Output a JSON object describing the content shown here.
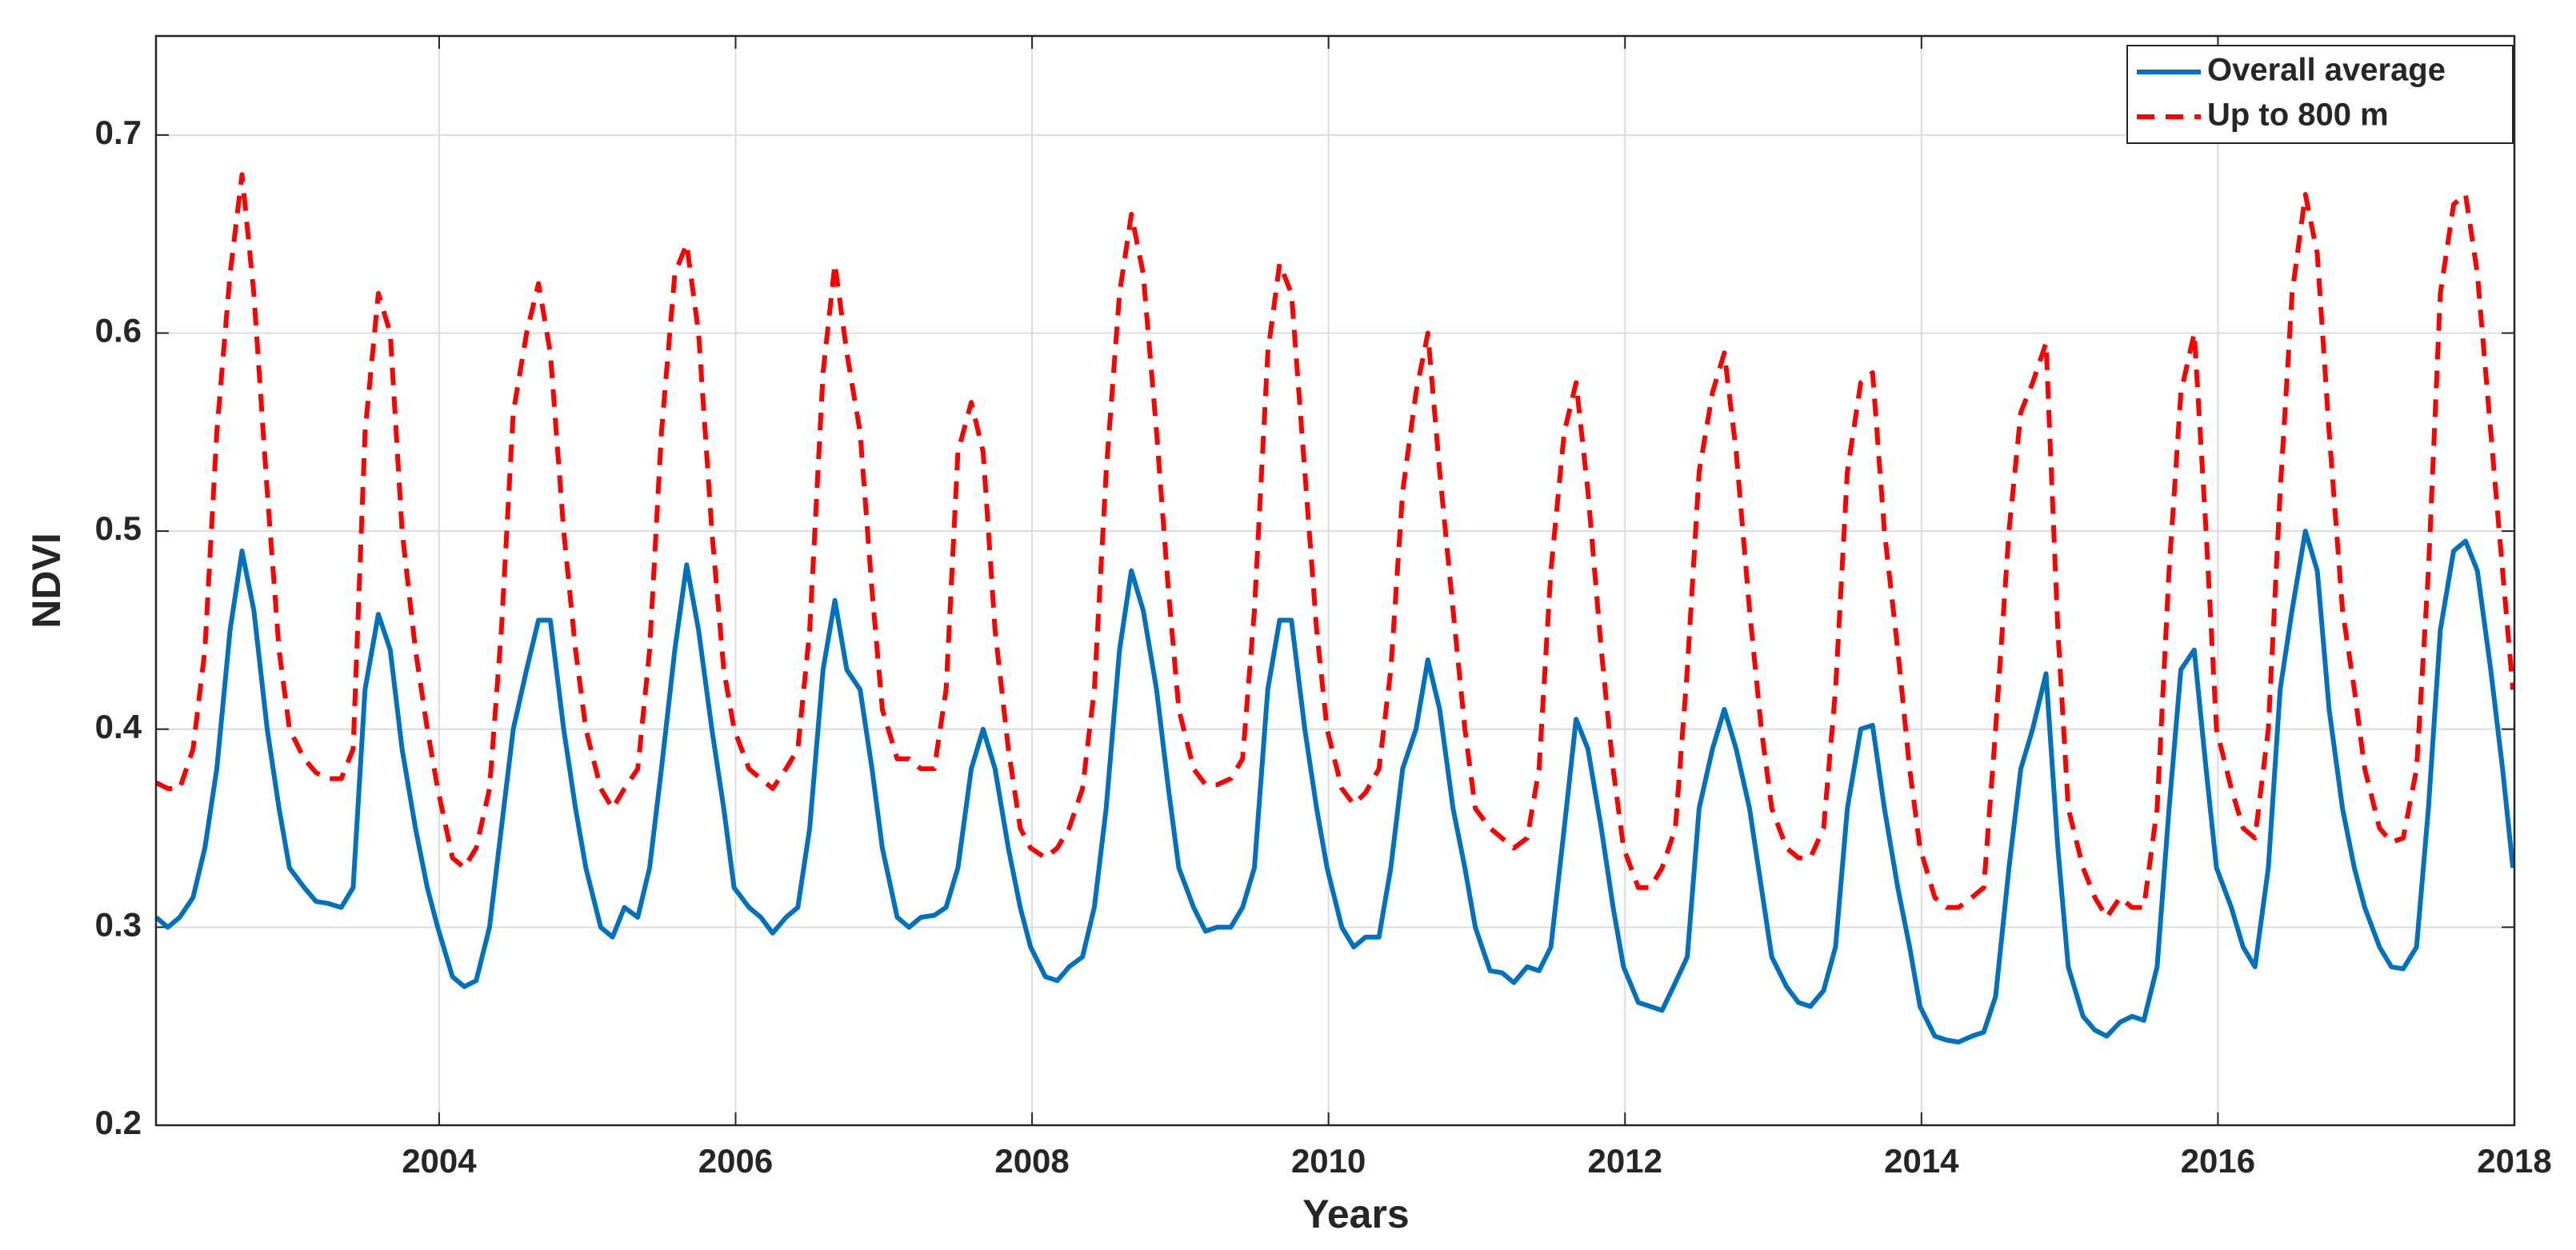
{
  "chart_data": {
    "type": "line",
    "xlabel": "Years",
    "ylabel": "NDVI",
    "xlim": [
      2002.09,
      2018
    ],
    "ylim": [
      0.2,
      0.75
    ],
    "xticks": [
      2004,
      2006,
      2008,
      2010,
      2012,
      2014,
      2016,
      2018
    ],
    "yticks": [
      0.2,
      0.3,
      0.4,
      0.5,
      0.6,
      0.7
    ],
    "grid": true,
    "legend": "upper right",
    "x": [
      2002.09,
      2002.17,
      2002.25,
      2002.34,
      2002.42,
      2002.5,
      2002.59,
      2002.67,
      2002.75,
      2002.84,
      2002.92,
      2002.99,
      2003.09,
      2003.17,
      2003.25,
      2003.34,
      2003.42,
      2003.5,
      2003.59,
      2003.67,
      2003.75,
      2003.84,
      2003.92,
      2003.99,
      2004.09,
      2004.17,
      2004.25,
      2004.34,
      2004.42,
      2004.5,
      2004.59,
      2004.67,
      2004.75,
      2004.84,
      2004.92,
      2004.99,
      2005.09,
      2005.17,
      2005.25,
      2005.34,
      2005.42,
      2005.5,
      2005.59,
      2005.67,
      2005.75,
      2005.84,
      2005.92,
      2005.99,
      2006.09,
      2006.17,
      2006.25,
      2006.34,
      2006.42,
      2006.5,
      2006.59,
      2006.67,
      2006.75,
      2006.84,
      2006.92,
      2006.99,
      2007.09,
      2007.17,
      2007.25,
      2007.34,
      2007.42,
      2007.5,
      2007.59,
      2007.67,
      2007.75,
      2007.84,
      2007.92,
      2007.99,
      2008.09,
      2008.17,
      2008.25,
      2008.34,
      2008.42,
      2008.5,
      2008.59,
      2008.67,
      2008.75,
      2008.84,
      2008.92,
      2008.99,
      2009.09,
      2009.17,
      2009.25,
      2009.34,
      2009.42,
      2009.5,
      2009.59,
      2009.67,
      2009.75,
      2009.84,
      2009.92,
      2009.99,
      2010.09,
      2010.17,
      2010.25,
      2010.34,
      2010.42,
      2010.5,
      2010.59,
      2010.67,
      2010.75,
      2010.84,
      2010.92,
      2010.99,
      2011.09,
      2011.17,
      2011.25,
      2011.34,
      2011.42,
      2011.5,
      2011.59,
      2011.67,
      2011.75,
      2011.84,
      2011.92,
      2011.99,
      2012.09,
      2012.17,
      2012.25,
      2012.34,
      2012.42,
      2012.5,
      2012.59,
      2012.67,
      2012.75,
      2012.84,
      2012.92,
      2012.99,
      2013.09,
      2013.17,
      2013.25,
      2013.34,
      2013.42,
      2013.5,
      2013.59,
      2013.67,
      2013.75,
      2013.84,
      2013.92,
      2013.99,
      2014.09,
      2014.17,
      2014.25,
      2014.34,
      2014.42,
      2014.5,
      2014.59,
      2014.67,
      2014.75,
      2014.84,
      2014.92,
      2014.99,
      2015.09,
      2015.17,
      2015.25,
      2015.34,
      2015.42,
      2015.5,
      2015.59,
      2015.67,
      2015.75,
      2015.84,
      2015.92,
      2015.99,
      2016.09,
      2016.17,
      2016.25,
      2016.34,
      2016.42,
      2016.5,
      2016.59,
      2016.67,
      2016.75,
      2016.84,
      2016.92,
      2016.99,
      2017.09,
      2017.17,
      2017.25,
      2017.34,
      2017.42,
      2017.5,
      2017.59,
      2017.67,
      2017.75,
      2017.84,
      2017.92,
      2017.99
    ],
    "series": [
      {
        "name": "Overall average",
        "color": "#0072bd",
        "values": [
          0.305,
          0.3,
          0.305,
          0.315,
          0.34,
          0.38,
          0.45,
          0.49,
          0.46,
          0.4,
          0.36,
          0.33,
          0.32,
          0.313,
          0.312,
          0.31,
          0.32,
          0.42,
          0.458,
          0.44,
          0.39,
          0.35,
          0.32,
          0.3,
          0.275,
          0.27,
          0.273,
          0.3,
          0.35,
          0.4,
          0.43,
          0.455,
          0.455,
          0.4,
          0.36,
          0.33,
          0.3,
          0.295,
          0.31,
          0.305,
          0.33,
          0.38,
          0.44,
          0.483,
          0.45,
          0.4,
          0.36,
          0.32,
          0.31,
          0.305,
          0.297,
          0.305,
          0.31,
          0.35,
          0.43,
          0.465,
          0.43,
          0.42,
          0.38,
          0.34,
          0.305,
          0.3,
          0.305,
          0.306,
          0.31,
          0.33,
          0.38,
          0.4,
          0.38,
          0.34,
          0.31,
          0.29,
          0.275,
          0.273,
          0.28,
          0.285,
          0.31,
          0.36,
          0.44,
          0.48,
          0.46,
          0.42,
          0.37,
          0.33,
          0.31,
          0.298,
          0.3,
          0.3,
          0.31,
          0.33,
          0.42,
          0.455,
          0.455,
          0.4,
          0.36,
          0.33,
          0.3,
          0.29,
          0.295,
          0.295,
          0.33,
          0.38,
          0.4,
          0.435,
          0.41,
          0.36,
          0.33,
          0.3,
          0.278,
          0.277,
          0.272,
          0.28,
          0.278,
          0.29,
          0.35,
          0.405,
          0.39,
          0.35,
          0.31,
          0.28,
          0.262,
          0.26,
          0.258,
          0.272,
          0.285,
          0.36,
          0.39,
          0.41,
          0.39,
          0.36,
          0.32,
          0.285,
          0.27,
          0.262,
          0.26,
          0.268,
          0.29,
          0.36,
          0.4,
          0.402,
          0.36,
          0.32,
          0.29,
          0.26,
          0.245,
          0.243,
          0.242,
          0.245,
          0.247,
          0.265,
          0.33,
          0.38,
          0.4,
          0.428,
          0.34,
          0.28,
          0.255,
          0.248,
          0.245,
          0.252,
          0.255,
          0.253,
          0.28,
          0.36,
          0.43,
          0.44,
          0.38,
          0.33,
          0.31,
          0.29,
          0.28,
          0.33,
          0.42,
          0.46,
          0.5,
          0.48,
          0.41,
          0.36,
          0.33,
          0.31,
          0.29,
          0.28,
          0.279,
          0.29,
          0.36,
          0.45,
          0.49,
          0.495,
          0.48,
          0.43,
          0.38,
          0.33
        ]
      },
      {
        "name": "Up to 800 m",
        "color": "#ff0000",
        "dashed": true,
        "values": [
          0.373,
          0.37,
          0.37,
          0.39,
          0.44,
          0.55,
          0.63,
          0.68,
          0.62,
          0.52,
          0.44,
          0.4,
          0.385,
          0.378,
          0.375,
          0.375,
          0.39,
          0.55,
          0.62,
          0.6,
          0.5,
          0.44,
          0.4,
          0.37,
          0.335,
          0.33,
          0.34,
          0.37,
          0.45,
          0.56,
          0.6,
          0.625,
          0.59,
          0.5,
          0.44,
          0.4,
          0.37,
          0.36,
          0.37,
          0.38,
          0.44,
          0.55,
          0.63,
          0.645,
          0.6,
          0.5,
          0.43,
          0.4,
          0.38,
          0.375,
          0.37,
          0.38,
          0.39,
          0.45,
          0.58,
          0.635,
          0.59,
          0.55,
          0.47,
          0.41,
          0.385,
          0.385,
          0.38,
          0.38,
          0.42,
          0.54,
          0.565,
          0.54,
          0.45,
          0.39,
          0.35,
          0.34,
          0.335,
          0.34,
          0.35,
          0.37,
          0.42,
          0.53,
          0.62,
          0.66,
          0.63,
          0.55,
          0.47,
          0.41,
          0.38,
          0.372,
          0.372,
          0.375,
          0.385,
          0.46,
          0.59,
          0.635,
          0.62,
          0.53,
          0.45,
          0.4,
          0.37,
          0.362,
          0.368,
          0.38,
          0.43,
          0.52,
          0.57,
          0.6,
          0.53,
          0.46,
          0.4,
          0.36,
          0.35,
          0.345,
          0.34,
          0.345,
          0.38,
          0.48,
          0.55,
          0.575,
          0.52,
          0.44,
          0.38,
          0.34,
          0.32,
          0.32,
          0.33,
          0.35,
          0.43,
          0.53,
          0.57,
          0.59,
          0.54,
          0.46,
          0.4,
          0.36,
          0.34,
          0.335,
          0.335,
          0.35,
          0.42,
          0.53,
          0.575,
          0.58,
          0.5,
          0.44,
          0.38,
          0.34,
          0.315,
          0.31,
          0.31,
          0.315,
          0.32,
          0.4,
          0.5,
          0.56,
          0.575,
          0.595,
          0.45,
          0.36,
          0.33,
          0.315,
          0.305,
          0.315,
          0.31,
          0.31,
          0.36,
          0.48,
          0.57,
          0.6,
          0.5,
          0.4,
          0.37,
          0.35,
          0.345,
          0.4,
          0.52,
          0.62,
          0.67,
          0.64,
          0.55,
          0.46,
          0.42,
          0.38,
          0.35,
          0.343,
          0.345,
          0.38,
          0.48,
          0.62,
          0.665,
          0.67,
          0.63,
          0.55,
          0.48,
          0.42
        ]
      }
    ]
  }
}
